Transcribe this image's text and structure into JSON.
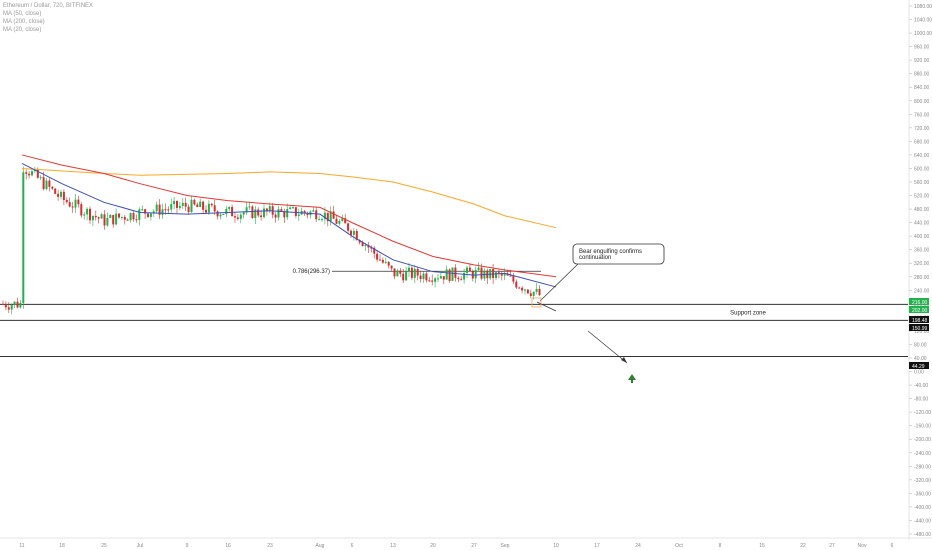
{
  "legend": {
    "symbol": "Ethereum / Dollar, 720, BITFINEX",
    "ma50": "MA (50, close)",
    "ma200": "MA (200, close)",
    "ma20": "MA (20, close)"
  },
  "price_axis": {
    "labels": [
      "1080.00",
      "1040.00",
      "1000.00",
      "960.00",
      "920.00",
      "880.00",
      "840.00",
      "800.00",
      "760.00",
      "720.00",
      "680.00",
      "640.00",
      "600.00",
      "560.00",
      "520.00",
      "480.00",
      "440.00",
      "400.00",
      "360.00",
      "320.00",
      "280.00",
      "240.00",
      "200.00",
      "160.00",
      "120.00",
      "80.00",
      "40.00",
      "0.00",
      "-40.00",
      "-80.00",
      "-120.00",
      "-160.00",
      "-200.00",
      "-240.00",
      "-280.00",
      "-320.00",
      "-360.00",
      "-400.00",
      "-440.00",
      "-480.00"
    ],
    "tags": [
      {
        "text": "216.00",
        "color": "#22b14c"
      },
      {
        "text": "202.00",
        "color": "#22b14c"
      },
      {
        "text": "198.48",
        "color": "#111111"
      },
      {
        "text": "150.99",
        "color": "#111111"
      },
      {
        "text": "44.29",
        "color": "#111111"
      }
    ]
  },
  "date_axis": {
    "labels": [
      "11",
      "18",
      "25",
      "Jul",
      "9",
      "16",
      "23",
      "Aug",
      "6",
      "13",
      "20",
      "27",
      "Sep",
      "10",
      "17",
      "24",
      "Oct",
      "8",
      "15",
      "22",
      "27",
      "Nov",
      "6"
    ]
  },
  "annotations": {
    "fib_label": "0.786(296.37)",
    "callout": [
      "Bear engulfing confirms",
      "continuation"
    ],
    "support_label": "Support zone"
  },
  "colors": {
    "bull": "#22b14c",
    "bear": "#d32f2f",
    "ma50": "#e53935",
    "ma200": "#ffa726",
    "ma20": "#3f51b5",
    "line": "#333333",
    "marker": "#2e7d32"
  },
  "chart_data": {
    "type": "candlestick",
    "symbol": "ETHUSD",
    "exchange": "BITFINEX",
    "interval": "720",
    "ylim": [
      -480,
      1080
    ],
    "levels": [
      {
        "label": "Support zone",
        "top": 198.48,
        "bottom": 150.99
      },
      {
        "label": "",
        "value": 44.29
      },
      {
        "label": "0.786(296.37)",
        "value": 296.37
      }
    ],
    "ma200": [
      [
        "11",
        600
      ],
      [
        "25",
        585
      ],
      [
        "Jul",
        580
      ],
      [
        "16",
        585
      ],
      [
        "23",
        590
      ],
      [
        "Aug",
        585
      ],
      [
        "6",
        575
      ],
      [
        "13",
        560
      ],
      [
        "20",
        530
      ],
      [
        "27",
        495
      ],
      [
        "Sep",
        460
      ],
      [
        "10",
        425
      ]
    ],
    "ma50": [
      [
        "11",
        640
      ],
      [
        "18",
        610
      ],
      [
        "25",
        585
      ],
      [
        "Jul",
        555
      ],
      [
        "9",
        520
      ],
      [
        "16",
        505
      ],
      [
        "23",
        495
      ],
      [
        "Aug",
        485
      ],
      [
        "6",
        440
      ],
      [
        "13",
        385
      ],
      [
        "20",
        340
      ],
      [
        "27",
        315
      ],
      [
        "Sep",
        300
      ],
      [
        "10",
        280
      ]
    ],
    "ma20": [
      [
        "11",
        615
      ],
      [
        "18",
        555
      ],
      [
        "25",
        500
      ],
      [
        "Jul",
        470
      ],
      [
        "9",
        465
      ],
      [
        "16",
        470
      ],
      [
        "23",
        475
      ],
      [
        "Aug",
        465
      ],
      [
        "6",
        400
      ],
      [
        "13",
        330
      ],
      [
        "20",
        295
      ],
      [
        "27",
        285
      ],
      [
        "Sep",
        290
      ],
      [
        "10",
        250
      ]
    ],
    "closes": [
      [
        "11",
        610
      ],
      [
        "18",
        510
      ],
      [
        "25",
        445
      ],
      [
        "Jul",
        470
      ],
      [
        "9",
        490
      ],
      [
        "16",
        470
      ],
      [
        "23",
        470
      ],
      [
        "Aug",
        470
      ],
      [
        "6",
        420
      ],
      [
        "13",
        290
      ],
      [
        "20",
        285
      ],
      [
        "27",
        290
      ],
      [
        "Sep",
        280
      ],
      [
        "10",
        200
      ]
    ]
  }
}
